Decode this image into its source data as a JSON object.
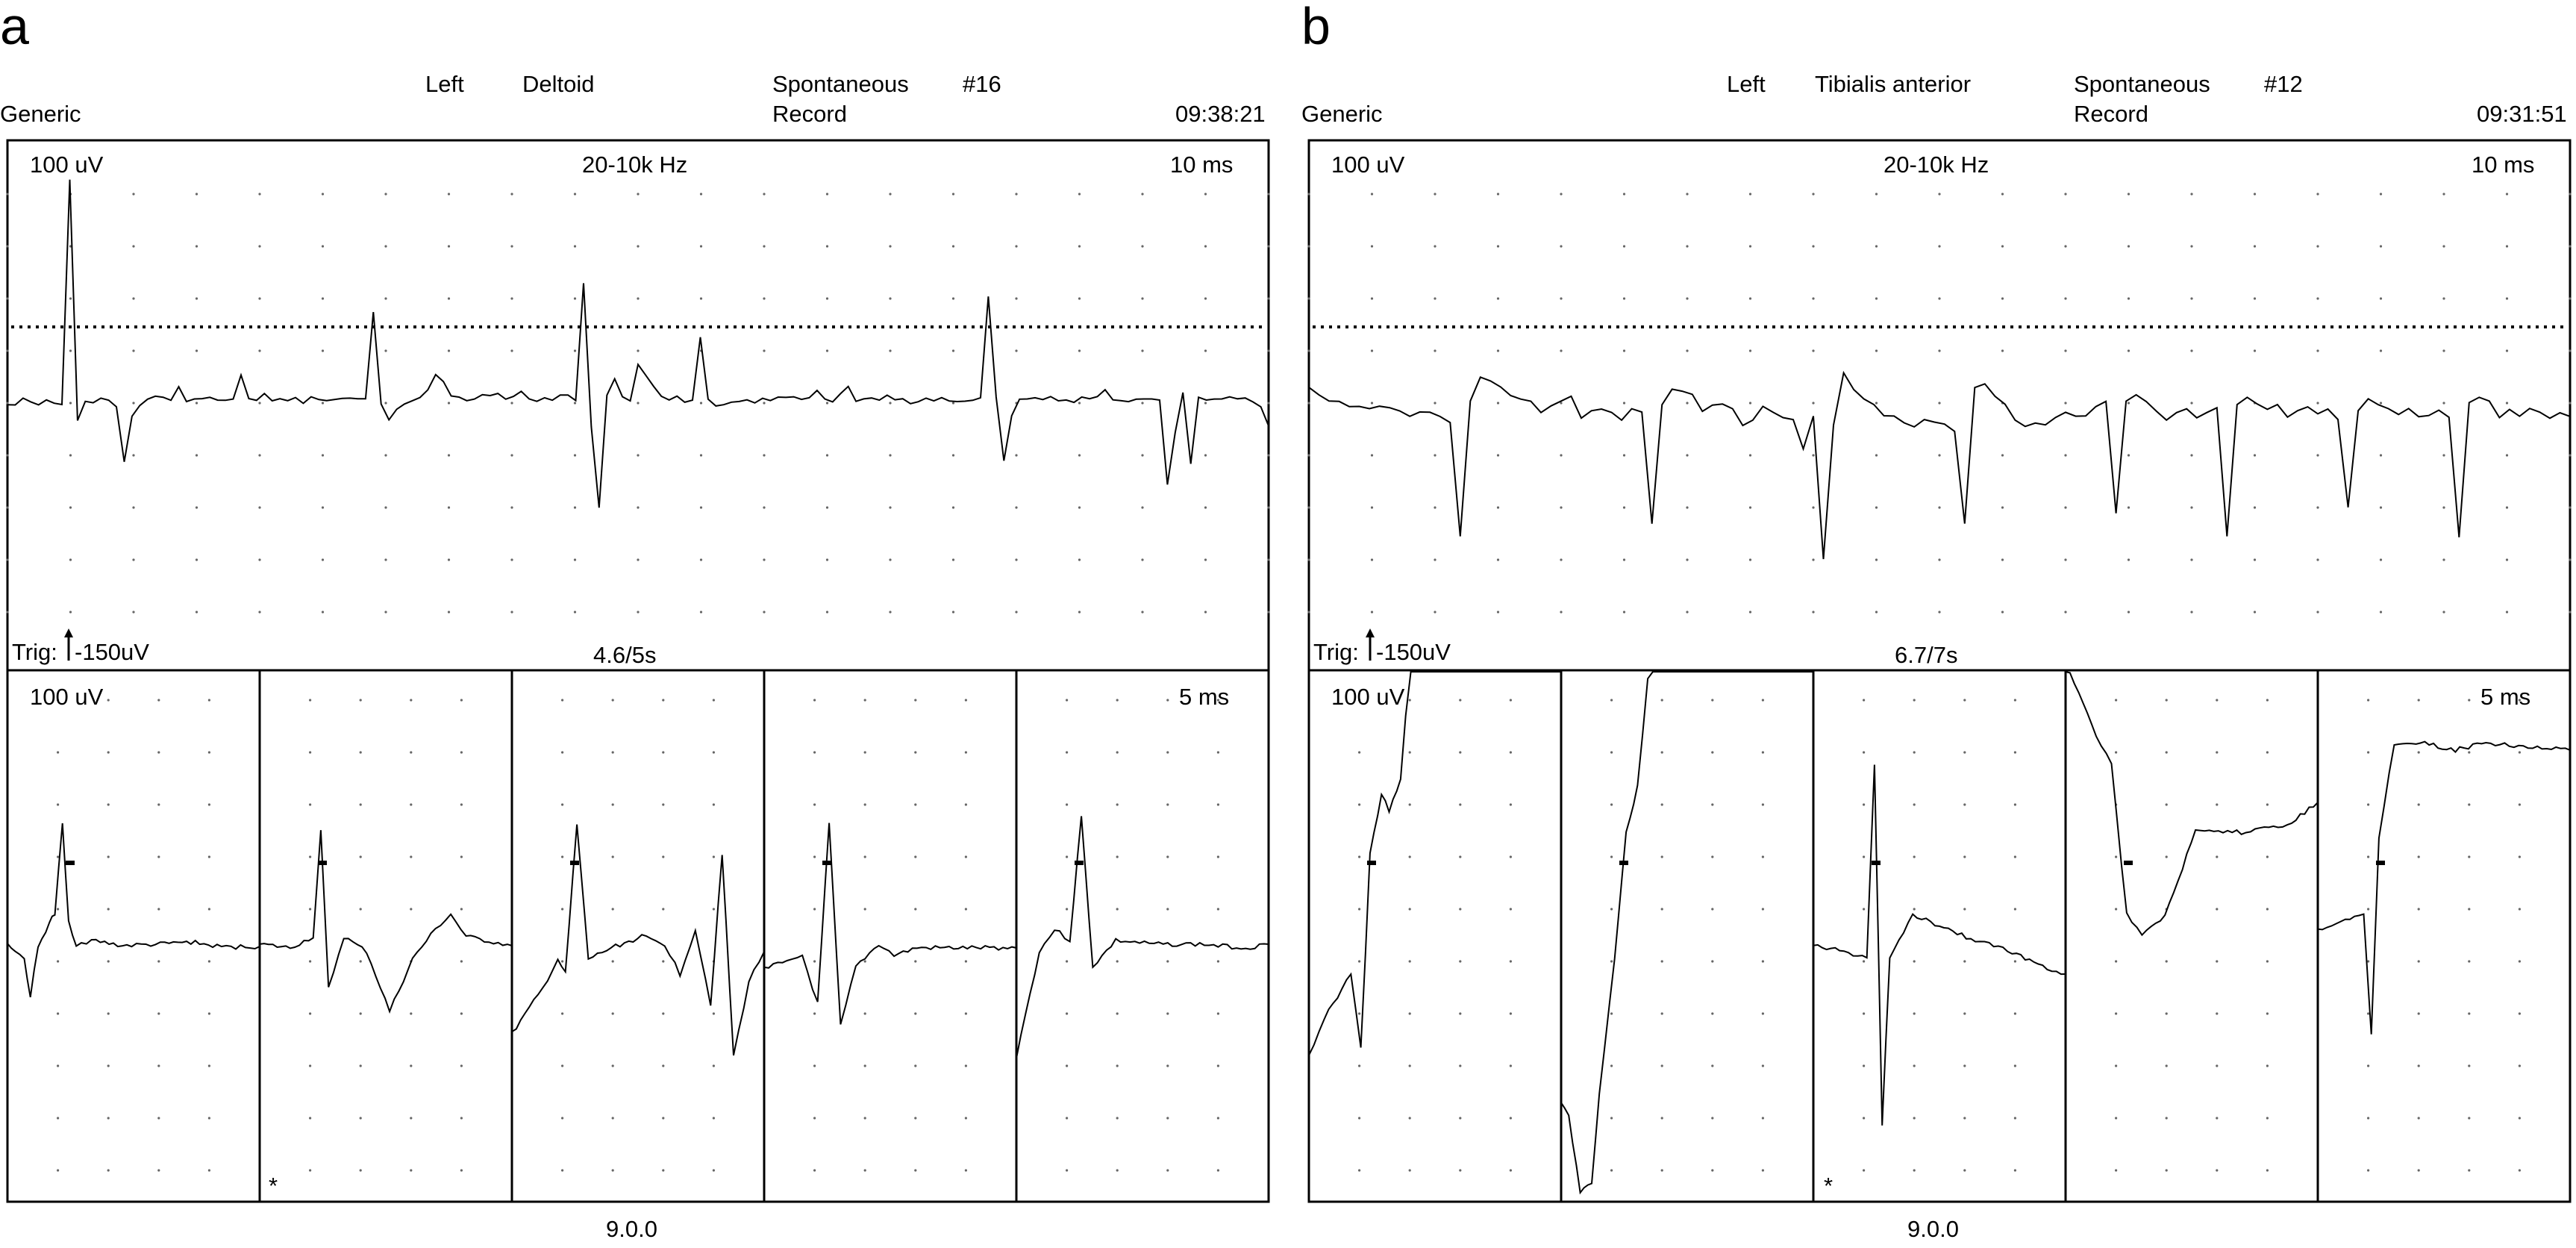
{
  "panels": [
    {
      "letter": "a",
      "header": {
        "program": "Generic",
        "side": "Left",
        "muscle": "Deltoid",
        "mode_line1": "Spontaneous",
        "mode_line2": "Record",
        "record_no": "#16",
        "time": "09:38:21"
      },
      "top_trace": {
        "gain": "100 uV",
        "filter": "20-10k Hz",
        "sweep": "10 ms",
        "trigger_prefix": "Trig:",
        "trigger_value": "-150uV",
        "duration": "4.6/5s"
      },
      "bottom_traces": {
        "gain": "100 uV",
        "sweep": "5 ms",
        "marker": "*",
        "marker_window": 2
      },
      "footer": "9.0.0"
    },
    {
      "letter": "b",
      "header": {
        "program": "Generic",
        "side": "Left",
        "muscle": "Tibialis anterior",
        "mode_line1": "Spontaneous",
        "mode_line2": "Record",
        "record_no": "#12",
        "time": "09:31:51"
      },
      "top_trace": {
        "gain": "100 uV",
        "filter": "20-10k Hz",
        "sweep": "10 ms",
        "trigger_prefix": "Trig:",
        "trigger_value": "-150uV",
        "duration": "6.7/7s"
      },
      "bottom_traces": {
        "gain": "100 uV",
        "sweep": "5 ms",
        "marker": "*",
        "marker_window": 3
      },
      "footer": "9.0.0"
    }
  ],
  "chart_data": [
    {
      "type": "line",
      "panel": "a",
      "description_source": "EMG spontaneous activity trace, Left Deltoid",
      "series": [
        {
          "values": [
            0,
            0,
            4,
            1,
            0,
            2,
            -1,
            -2,
            300,
            -25,
            0,
            3,
            6,
            2,
            -5,
            -80,
            -20,
            -2,
            4,
            8,
            5,
            6,
            20,
            4,
            5,
            4,
            8,
            3,
            5,
            6,
            35,
            4,
            3,
            10,
            6,
            5,
            4,
            8,
            2,
            7,
            4,
            3,
            4,
            8,
            6,
            5,
            4,
            120,
            0,
            -25,
            -10,
            0,
            5,
            10,
            20,
            40,
            30,
            10,
            8,
            6,
            4,
            10,
            8,
            12,
            6,
            10,
            14,
            8,
            5,
            6,
            4,
            10,
            8,
            6,
            160,
            -30,
            -140,
            10,
            30,
            10,
            5,
            50,
            40,
            20,
            10,
            5,
            10,
            3,
            2,
            90,
            3,
            -1,
            -5,
            4,
            2,
            6,
            2,
            4,
            3,
            5,
            6,
            8,
            2,
            6,
            15,
            4,
            3,
            10,
            20,
            5,
            6,
            4,
            3,
            8,
            4,
            5,
            2,
            3,
            6,
            4,
            6,
            5,
            3,
            3,
            2,
            6,
            140,
            10,
            -80,
            -20,
            3,
            4,
            10,
            5,
            8,
            2,
            4,
            3,
            8,
            5,
            6,
            20,
            5,
            3,
            4,
            6,
            5,
            8,
            6,
            -110,
            -40,
            15,
            -80,
            10,
            4,
            8,
            6,
            10,
            5,
            4,
            4,
            -5,
            -30
          ]
        }
      ],
      "units": {
        "gain": "100 uV",
        "sweep": "10 ms"
      }
    },
    {
      "type": "line",
      "panel": "b",
      "description_source": "EMG spontaneous activity trace, Left Tibialis anterior",
      "series": [
        {
          "values": [
            20,
            8,
            4,
            0,
            -2,
            -5,
            -8,
            -4,
            -6,
            -10,
            -20,
            -12,
            -15,
            -20,
            -25,
            -180,
            0,
            35,
            30,
            20,
            10,
            5,
            0,
            -10,
            -5,
            0,
            8,
            -20,
            -10,
            -5,
            -12,
            -20,
            -8,
            -10,
            -160,
            -5,
            20,
            15,
            10,
            -10,
            -5,
            -2,
            -10,
            -30,
            -20,
            -5,
            -10,
            -20,
            -25,
            -60,
            -20,
            -210,
            -30,
            40,
            20,
            5,
            0,
            -15,
            -20,
            -25,
            -30,
            -20,
            -25,
            -30,
            -40,
            -160,
            20,
            25,
            10,
            0,
            -20,
            -30,
            -25,
            -30,
            -20,
            -10,
            -15,
            -20,
            -5,
            0,
            -150,
            5,
            10,
            5,
            -10,
            -20,
            -15,
            -10,
            -20,
            -10,
            -5,
            -180,
            0,
            10,
            0,
            -10,
            -5,
            -20,
            -10,
            -5,
            -15,
            -10,
            -20,
            -140,
            -10,
            5,
            0,
            -10,
            -15,
            -10,
            -20,
            -15,
            -10,
            -20,
            -180,
            0,
            10,
            0,
            -20,
            -10,
            -15,
            -5,
            -10,
            -20,
            -15,
            -20
          ]
        }
      ],
      "units": {
        "gain": "100 uV",
        "sweep": "10 ms"
      }
    }
  ]
}
